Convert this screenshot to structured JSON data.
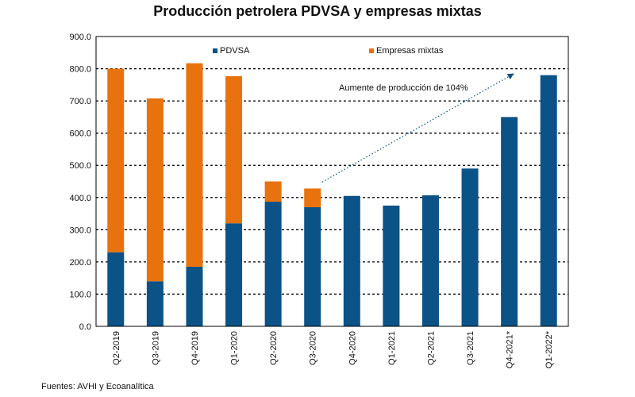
{
  "title": "Producción petrolera PDVSA y empresas mixtas",
  "source": "Fuentes: AVHI y Ecoanalítica",
  "annotation": "Aumente de producción de 104%",
  "colors": {
    "pdvsa": "#0b5287",
    "mixtas": "#e8720d",
    "grid": "#000000",
    "annotation": "#0b5287"
  },
  "chart_data": {
    "type": "bar",
    "stacked": true,
    "categories": [
      "Q2-2019",
      "Q3-2019",
      "Q4-2019",
      "Q1-2020",
      "Q2-2020",
      "Q3-2020",
      "Q4-2020",
      "Q1-2021",
      "Q2-2021",
      "Q3-2021",
      "Q4-2021*",
      "Q1-2022*"
    ],
    "series": [
      {
        "name": "PDVSA",
        "values": [
          230,
          140,
          185,
          320,
          387,
          370,
          405,
          375,
          407,
          490,
          650,
          780
        ]
      },
      {
        "name": "Empresas mixtas",
        "values": [
          570,
          568,
          632,
          457,
          63,
          58,
          0,
          0,
          0,
          0,
          0,
          0
        ]
      }
    ],
    "ylim": [
      0,
      900
    ],
    "yticks": [
      0,
      100,
      200,
      300,
      400,
      500,
      600,
      700,
      800,
      900
    ],
    "ytick_labels": [
      "0.0",
      "100.0",
      "200.0",
      "300.0",
      "400.0",
      "500.0",
      "600.0",
      "700.0",
      "800.0",
      "900.0"
    ],
    "grid": "dashed horizontal",
    "legend": "top, inside plot"
  }
}
